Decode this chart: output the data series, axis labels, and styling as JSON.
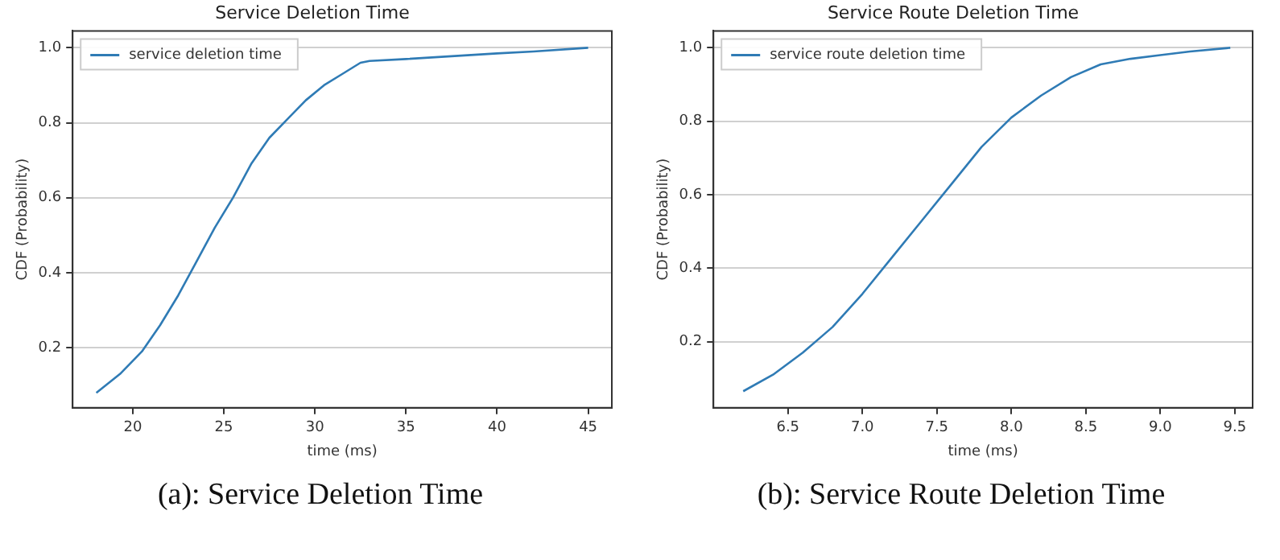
{
  "chart_data": [
    {
      "type": "line",
      "title": "Service Deletion Time",
      "xlabel": "time (ms)",
      "ylabel": "CDF (Probability)",
      "annotations": [
        "(a): Service Deletion Time"
      ],
      "series": [
        {
          "name": "service deletion time",
          "color": "#2f7bb5",
          "x": [
            18,
            19.3,
            20.5,
            21.5,
            22.5,
            23.5,
            24.5,
            25.5,
            26.5,
            27.5,
            28.5,
            29.5,
            30.5,
            31.5,
            32.5,
            33,
            35,
            40,
            42,
            45
          ],
          "values": [
            0.08,
            0.13,
            0.19,
            0.26,
            0.34,
            0.43,
            0.52,
            0.6,
            0.69,
            0.76,
            0.81,
            0.86,
            0.9,
            0.93,
            0.96,
            0.965,
            0.97,
            0.985,
            0.99,
            1.0
          ]
        }
      ],
      "xlim": [
        16.7,
        46.3
      ],
      "ylim": [
        0.04,
        1.045
      ],
      "xticks": [
        20,
        25,
        30,
        35,
        40,
        45
      ],
      "yticks": [
        {
          "value": 0.2,
          "label": "0.2"
        },
        {
          "value": 0.4,
          "label": "0.4"
        },
        {
          "value": 0.6,
          "label": "0.6"
        },
        {
          "value": 0.8,
          "label": "0.8"
        },
        {
          "value": 1,
          "label": "1.0"
        }
      ],
      "grid": "y",
      "legend": "top left",
      "marker": "none",
      "line_style": "solid"
    },
    {
      "type": "line",
      "title": "Service Route Deletion Time",
      "xlabel": "time (ms)",
      "ylabel": "CDF (Probability)",
      "annotations": [
        "(b): Service Route Deletion Time"
      ],
      "series": [
        {
          "name": "service route deletion time",
          "color": "#2f7bb5",
          "x": [
            6.2,
            6.4,
            6.6,
            6.8,
            7.0,
            7.2,
            7.4,
            7.6,
            7.8,
            8.0,
            8.2,
            8.4,
            8.6,
            8.8,
            9.0,
            9.2,
            9.47
          ],
          "values": [
            0.065,
            0.11,
            0.17,
            0.24,
            0.33,
            0.43,
            0.53,
            0.63,
            0.73,
            0.81,
            0.87,
            0.92,
            0.955,
            0.97,
            0.98,
            0.99,
            1.0
          ]
        }
      ],
      "xlim": [
        6.0,
        9.62
      ],
      "ylim": [
        0.02,
        1.046
      ],
      "xticks": [
        6.5,
        {
          "value": 7,
          "label": "7.0"
        },
        7.5,
        {
          "value": 8,
          "label": "8.0"
        },
        8.5,
        {
          "value": 9,
          "label": "9.0"
        },
        9.5
      ],
      "yticks": [
        {
          "value": 0.2,
          "label": "0.2"
        },
        {
          "value": 0.4,
          "label": "0.4"
        },
        {
          "value": 0.6,
          "label": "0.6"
        },
        {
          "value": 0.8,
          "label": "0.8"
        },
        {
          "value": 1,
          "label": "1.0"
        }
      ],
      "grid": "y",
      "legend": "top left",
      "marker": "none",
      "line_style": "solid"
    }
  ]
}
